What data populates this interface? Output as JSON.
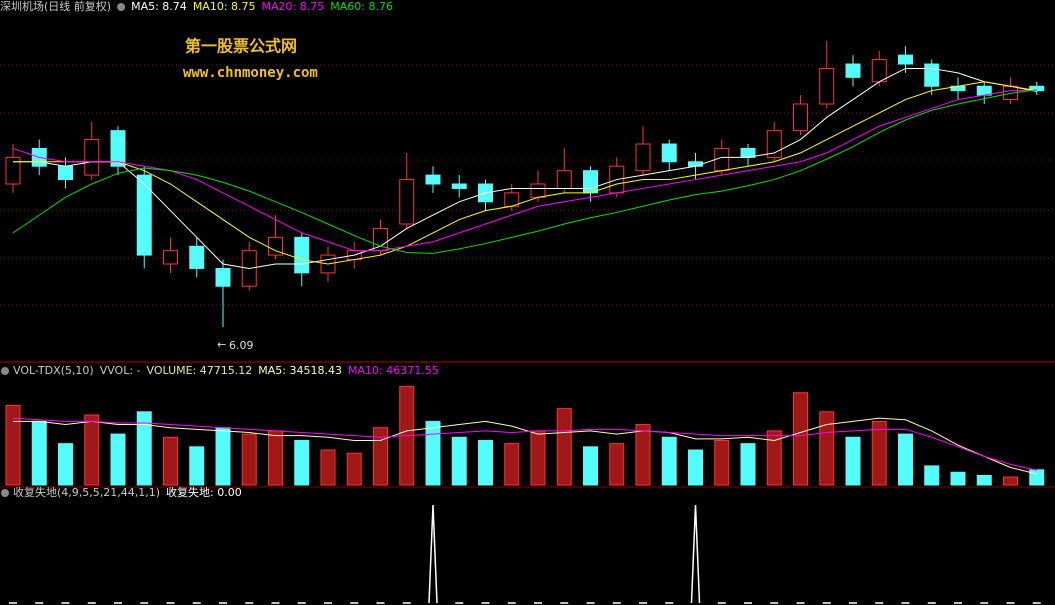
{
  "chart_data": [
    {
      "type": "candlestick",
      "title": "深圳机场(日线 前复权)",
      "annotations": [
        "第一股票公式网",
        "www.chnmoney.com"
      ],
      "ylim": [
        5.72,
        9.77
      ],
      "up_color": "#ff3232",
      "down_color": "#54fcfc",
      "open": [
        7.7,
        8.1,
        7.9,
        7.8,
        8.3,
        7.8,
        6.8,
        7.0,
        6.75,
        6.55,
        6.9,
        7.1,
        6.7,
        6.85,
        6.95,
        7.25,
        7.8,
        7.7,
        7.7,
        7.45,
        7.55,
        7.65,
        7.85,
        7.6,
        7.85,
        8.15,
        7.95,
        7.85,
        8.1,
        8.0,
        8.3,
        8.6,
        9.05,
        8.85,
        9.15,
        9.05,
        8.8,
        8.8,
        8.65,
        8.8
      ],
      "high": [
        8.15,
        8.2,
        8.0,
        8.4,
        8.35,
        7.9,
        7.1,
        7.1,
        6.85,
        7.05,
        7.35,
        7.15,
        7.0,
        7.05,
        7.3,
        8.05,
        7.9,
        7.8,
        7.75,
        7.7,
        7.85,
        8.1,
        7.9,
        8.0,
        8.35,
        8.2,
        8.05,
        8.2,
        8.15,
        8.4,
        8.7,
        9.31,
        9.15,
        9.2,
        9.25,
        9.1,
        8.9,
        8.85,
        8.9,
        8.85
      ],
      "low": [
        7.6,
        7.8,
        7.65,
        7.75,
        7.8,
        6.75,
        6.7,
        6.65,
        6.09,
        6.5,
        6.85,
        6.55,
        6.6,
        6.75,
        6.9,
        7.2,
        7.6,
        7.55,
        7.4,
        7.4,
        7.5,
        7.6,
        7.5,
        7.55,
        7.8,
        7.85,
        7.75,
        7.8,
        7.9,
        7.95,
        8.25,
        8.55,
        8.8,
        8.8,
        8.95,
        8.7,
        8.65,
        8.6,
        8.6,
        8.7
      ],
      "close": [
        8.0,
        7.9,
        7.75,
        8.2,
        7.9,
        6.9,
        6.95,
        6.75,
        6.55,
        6.95,
        7.1,
        6.7,
        6.9,
        6.95,
        7.2,
        7.75,
        7.7,
        7.65,
        7.5,
        7.6,
        7.7,
        7.85,
        7.6,
        7.9,
        8.15,
        7.95,
        7.9,
        8.1,
        8.0,
        8.3,
        8.6,
        9.0,
        8.9,
        9.1,
        9.05,
        8.8,
        8.75,
        8.7,
        8.8,
        8.75
      ],
      "series": [
        {
          "name": "MA5",
          "label": "MA5: 8.74",
          "color": "#ffffff",
          "values": [
            7.95,
            7.95,
            7.9,
            7.95,
            7.95,
            7.7,
            7.4,
            7.1,
            6.8,
            6.75,
            6.8,
            6.8,
            6.85,
            6.9,
            7.0,
            7.2,
            7.35,
            7.5,
            7.6,
            7.65,
            7.65,
            7.65,
            7.65,
            7.75,
            7.8,
            7.85,
            7.9,
            8.0,
            8.0,
            8.05,
            8.2,
            8.45,
            8.65,
            8.85,
            9.0,
            9.0,
            8.95,
            8.85,
            8.8,
            8.74
          ]
        },
        {
          "name": "MA10",
          "label": "MA10: 8.75",
          "color": "#ffff00",
          "values": [
            7.95,
            7.95,
            7.95,
            7.95,
            7.95,
            7.85,
            7.7,
            7.5,
            7.3,
            7.1,
            6.95,
            6.85,
            6.8,
            6.85,
            6.9,
            7.0,
            7.15,
            7.3,
            7.4,
            7.45,
            7.55,
            7.6,
            7.6,
            7.7,
            7.75,
            7.75,
            7.8,
            7.85,
            7.9,
            7.95,
            8.05,
            8.2,
            8.35,
            8.5,
            8.65,
            8.75,
            8.8,
            8.85,
            8.8,
            8.75
          ]
        },
        {
          "name": "MA20",
          "label": "MA20: 8.75",
          "color": "#ff00ff",
          "values": [
            8.1,
            8.0,
            7.95,
            7.95,
            7.95,
            7.9,
            7.85,
            7.75,
            7.6,
            7.45,
            7.3,
            7.15,
            7.05,
            6.95,
            6.95,
            7.0,
            7.05,
            7.15,
            7.25,
            7.35,
            7.45,
            7.5,
            7.55,
            7.6,
            7.65,
            7.7,
            7.75,
            7.8,
            7.85,
            7.9,
            7.95,
            8.05,
            8.2,
            8.35,
            8.45,
            8.55,
            8.65,
            8.7,
            8.75,
            8.75
          ]
        },
        {
          "name": "MA60",
          "label": "MA60: 8.76",
          "color": "#00e000",
          "values": [
            7.15,
            7.35,
            7.55,
            7.7,
            7.82,
            7.88,
            7.85,
            7.8,
            7.72,
            7.62,
            7.5,
            7.38,
            7.25,
            7.12,
            7.0,
            6.93,
            6.92,
            6.97,
            7.03,
            7.1,
            7.17,
            7.25,
            7.32,
            7.38,
            7.45,
            7.52,
            7.58,
            7.62,
            7.68,
            7.75,
            7.85,
            7.98,
            8.12,
            8.28,
            8.42,
            8.53,
            8.6,
            8.66,
            8.72,
            8.76
          ]
        }
      ]
    },
    {
      "type": "bar",
      "title": "VOL-TDX(5,10)",
      "subtitle": "VVOL: -",
      "ylim": [
        0,
        330000
      ],
      "label": "VOLUME: 47715.12",
      "label_color": "#e8e890",
      "values": [
        250000,
        200000,
        130000,
        220000,
        160000,
        230000,
        150000,
        120000,
        180000,
        160000,
        170000,
        140000,
        110000,
        100000,
        180000,
        310000,
        200000,
        150000,
        140000,
        130000,
        170000,
        240000,
        120000,
        130000,
        190000,
        150000,
        110000,
        140000,
        130000,
        170000,
        290000,
        230000,
        150000,
        200000,
        160000,
        60000,
        40000,
        30000,
        25000,
        47715.12
      ],
      "series": [
        {
          "name": "MA5",
          "label": "MA5: 34518.43",
          "color": "#ffffb0",
          "values": [
            200000,
            200000,
            190000,
            200000,
            190000,
            190000,
            180000,
            175000,
            170000,
            165000,
            155000,
            155000,
            150000,
            140000,
            140000,
            170000,
            180000,
            190000,
            200000,
            185000,
            160000,
            165000,
            170000,
            160000,
            170000,
            165000,
            145000,
            145000,
            150000,
            140000,
            165000,
            190000,
            200000,
            210000,
            205000,
            170000,
            125000,
            90000,
            55000,
            34518.43
          ]
        },
        {
          "name": "MA10",
          "label": "MA10: 46371.55",
          "color": "#ff00ff",
          "values": [
            210000,
            205000,
            200000,
            200000,
            195000,
            195000,
            190000,
            185000,
            180000,
            175000,
            170000,
            165000,
            160000,
            155000,
            150000,
            155000,
            160000,
            165000,
            170000,
            165000,
            170000,
            170000,
            175000,
            175000,
            170000,
            165000,
            160000,
            155000,
            155000,
            155000,
            155000,
            165000,
            170000,
            175000,
            175000,
            150000,
            120000,
            90000,
            65000,
            46371.55
          ]
        }
      ]
    },
    {
      "type": "spike",
      "title": "收复失地(4,9,5,5,21,44,1,1)",
      "ylim": [
        0,
        1
      ],
      "series": [
        {
          "name": "收复失地",
          "label": "收复失地: 0.00",
          "color": "#ffffff",
          "values": [
            0,
            0,
            0,
            0,
            0,
            0,
            0,
            0,
            0,
            0,
            0,
            0,
            0,
            0,
            0,
            0,
            1,
            0,
            0,
            0,
            0,
            0,
            0,
            0,
            0,
            0,
            1,
            0,
            0,
            0,
            0,
            0,
            0,
            0,
            0,
            0,
            0,
            0,
            0,
            0
          ]
        }
      ]
    }
  ]
}
